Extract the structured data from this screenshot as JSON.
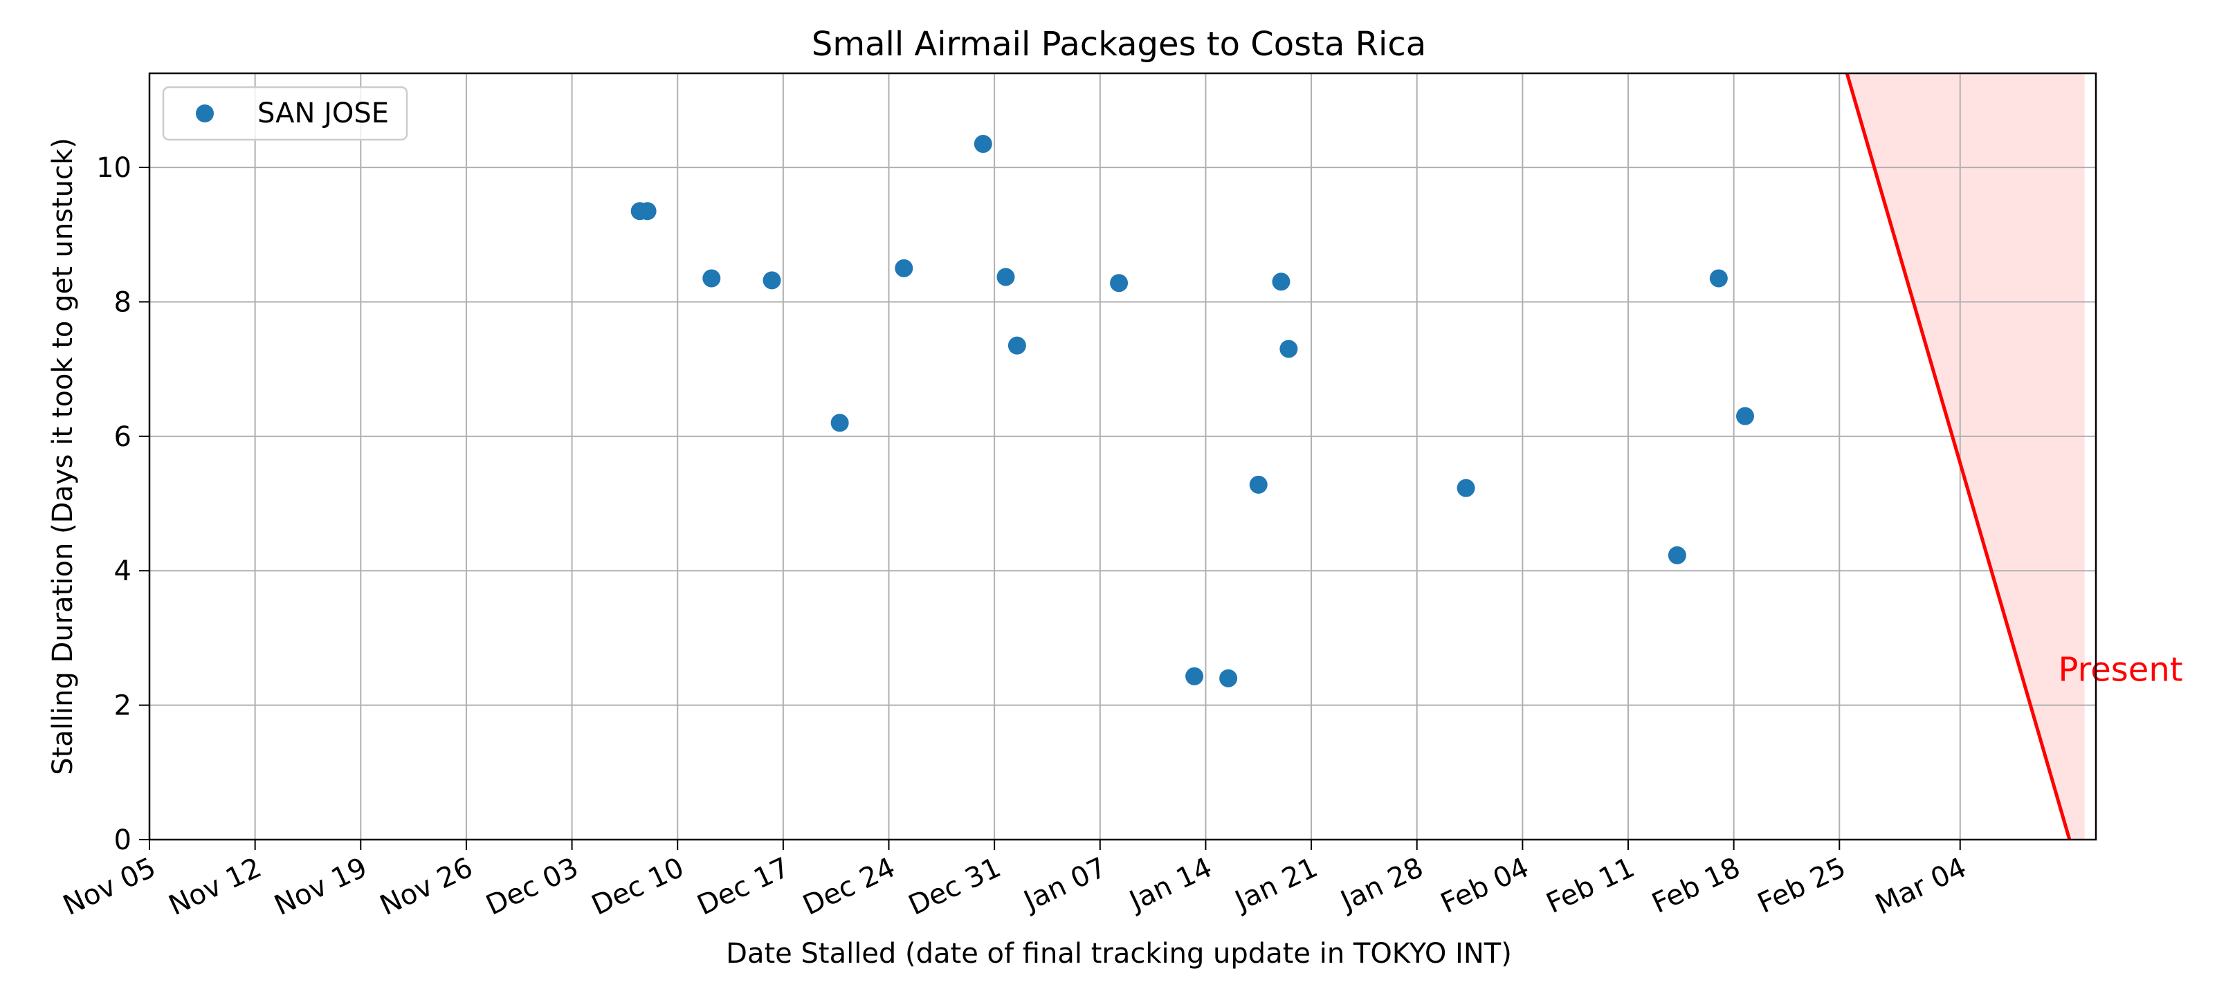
{
  "chart_data": {
    "type": "scatter",
    "title": "Small Airmail Packages to Costa Rica",
    "xlabel": "Date Stalled (date of final tracking update in TOKYO INT)",
    "ylabel": "Stalling Duration (Days it took to get unstuck)",
    "x_type": "date",
    "xlim": [
      "2023-11-05",
      "2024-03-13"
    ],
    "ylim": [
      0,
      11.4
    ],
    "grid": true,
    "legend_position": "top-left",
    "x_ticks": [
      {
        "date": "2023-11-05",
        "label": "Nov 05"
      },
      {
        "date": "2023-11-12",
        "label": "Nov 12"
      },
      {
        "date": "2023-11-19",
        "label": "Nov 19"
      },
      {
        "date": "2023-11-26",
        "label": "Nov 26"
      },
      {
        "date": "2023-12-03",
        "label": "Dec 03"
      },
      {
        "date": "2023-12-10",
        "label": "Dec 10"
      },
      {
        "date": "2023-12-17",
        "label": "Dec 17"
      },
      {
        "date": "2023-12-24",
        "label": "Dec 24"
      },
      {
        "date": "2023-12-31",
        "label": "Dec 31"
      },
      {
        "date": "2024-01-07",
        "label": "Jan 07"
      },
      {
        "date": "2024-01-14",
        "label": "Jan 14"
      },
      {
        "date": "2024-01-21",
        "label": "Jan 21"
      },
      {
        "date": "2024-01-28",
        "label": "Jan 28"
      },
      {
        "date": "2024-02-04",
        "label": "Feb 04"
      },
      {
        "date": "2024-02-11",
        "label": "Feb 11"
      },
      {
        "date": "2024-02-18",
        "label": "Feb 18"
      },
      {
        "date": "2024-02-25",
        "label": "Feb 25"
      },
      {
        "date": "2024-03-04",
        "label": "Mar 04"
      }
    ],
    "y_ticks": [
      {
        "value": 0,
        "label": "0"
      },
      {
        "value": 2,
        "label": "2"
      },
      {
        "value": 4,
        "label": "4"
      },
      {
        "value": 6,
        "label": "6"
      },
      {
        "value": 8,
        "label": "8"
      },
      {
        "value": 10,
        "label": "10"
      }
    ],
    "series": [
      {
        "name": "SAN JOSE",
        "color": "#1f77b4",
        "points": [
          {
            "x": "2023-12-07T12:00",
            "y": 9.35
          },
          {
            "x": "2023-12-08T00:00",
            "y": 9.35
          },
          {
            "x": "2023-12-12T06:00",
            "y": 8.35
          },
          {
            "x": "2023-12-16T06:00",
            "y": 8.32
          },
          {
            "x": "2023-12-20T18:00",
            "y": 6.2
          },
          {
            "x": "2023-12-25T00:00",
            "y": 8.5
          },
          {
            "x": "2023-12-30T06:00",
            "y": 10.35
          },
          {
            "x": "2023-12-31T18:00",
            "y": 8.37
          },
          {
            "x": "2024-01-01T12:00",
            "y": 7.35
          },
          {
            "x": "2024-01-08T06:00",
            "y": 8.28
          },
          {
            "x": "2024-01-13T06:00",
            "y": 2.43
          },
          {
            "x": "2024-01-15T12:00",
            "y": 2.4
          },
          {
            "x": "2024-01-17T12:00",
            "y": 5.28
          },
          {
            "x": "2024-01-19T00:00",
            "y": 8.3
          },
          {
            "x": "2024-01-19T12:00",
            "y": 7.3
          },
          {
            "x": "2024-01-31T06:00",
            "y": 5.23
          },
          {
            "x": "2024-02-14T06:00",
            "y": 4.23
          },
          {
            "x": "2024-02-17T00:00",
            "y": 8.35
          },
          {
            "x": "2024-02-18T18:00",
            "y": 6.3
          }
        ]
      }
    ],
    "annotation": {
      "label": "Present",
      "color": "#ff0000",
      "fill_color": "#ffe0e0",
      "line_start": {
        "x": "2024-02-25T12:00",
        "y": 11.4
      },
      "line_end": {
        "x": "2024-03-11T06:00",
        "y": 0
      },
      "region_x_end": "2024-03-12T06:00",
      "label_at": {
        "x": "2024-03-10T12:00",
        "y": 2.4
      }
    }
  }
}
